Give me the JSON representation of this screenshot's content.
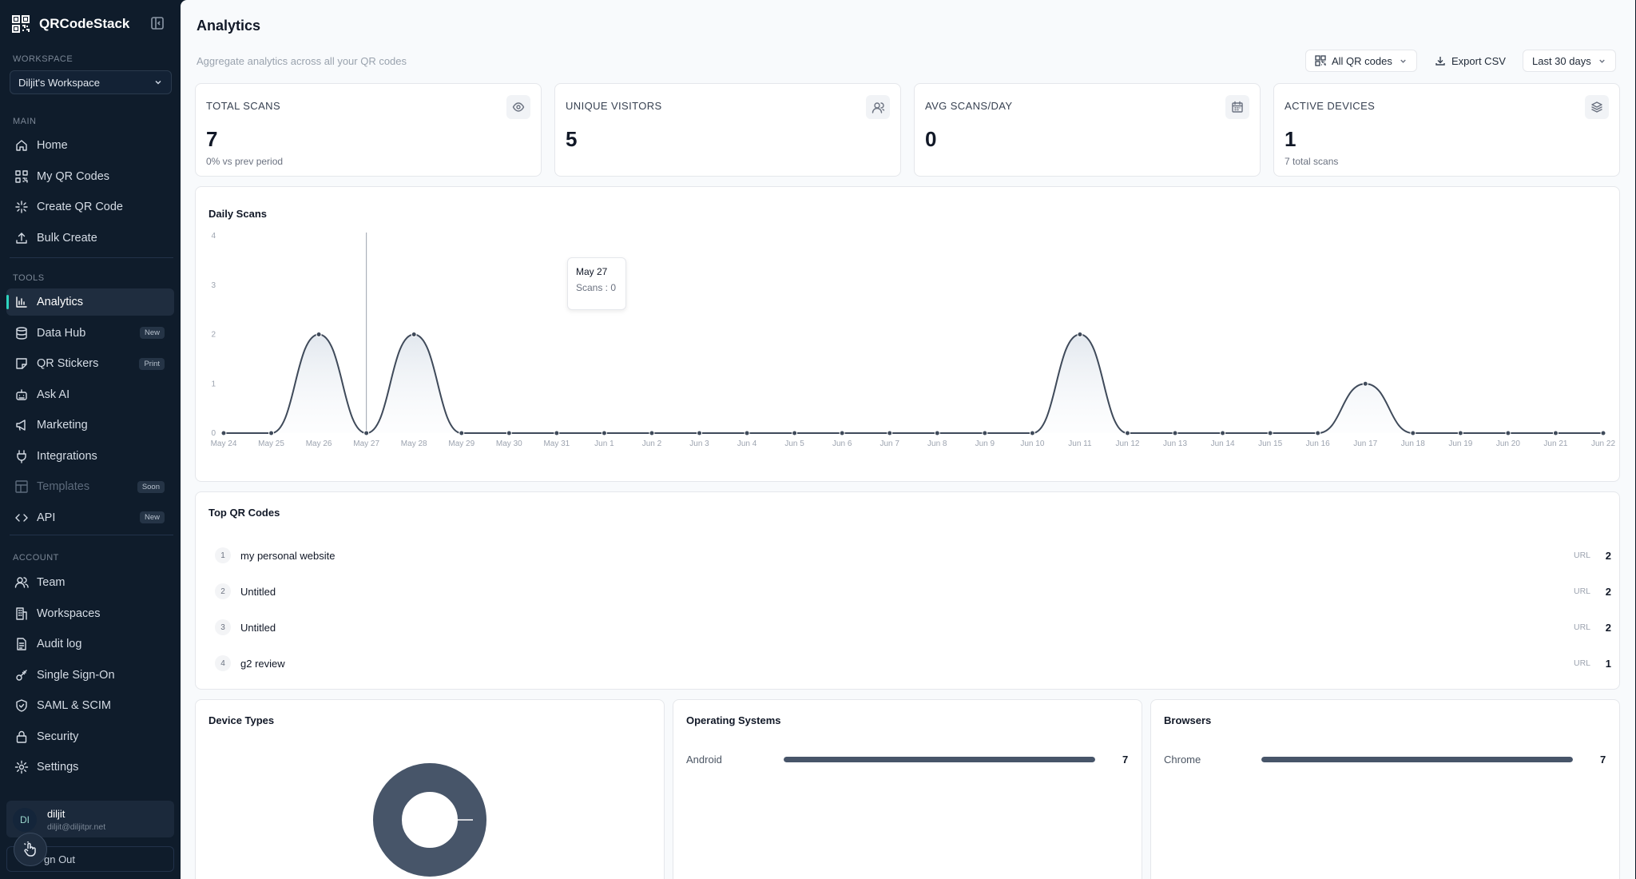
{
  "brand": {
    "name": "QRCodeStack"
  },
  "workspace": {
    "label": "WORKSPACE",
    "selected": "Diljit's Workspace"
  },
  "sections": {
    "main": "MAIN",
    "tools": "TOOLS",
    "account": "ACCOUNT"
  },
  "nav_main": [
    {
      "label": "Home",
      "icon": "home-icon"
    },
    {
      "label": "My QR Codes",
      "icon": "qr-icon"
    },
    {
      "label": "Create QR Code",
      "icon": "sparkle-icon"
    },
    {
      "label": "Bulk Create",
      "icon": "upload-icon"
    }
  ],
  "nav_tools": [
    {
      "label": "Analytics",
      "icon": "bar-chart-icon",
      "active": true
    },
    {
      "label": "Data Hub",
      "icon": "database-icon",
      "badge": "New"
    },
    {
      "label": "QR Stickers",
      "icon": "sticker-icon",
      "badge": "Print"
    },
    {
      "label": "Ask AI",
      "icon": "bot-icon"
    },
    {
      "label": "Marketing",
      "icon": "megaphone-icon"
    },
    {
      "label": "Integrations",
      "icon": "plug-icon"
    },
    {
      "label": "Templates",
      "icon": "template-icon",
      "badge": "Soon",
      "disabled": true
    },
    {
      "label": "API",
      "icon": "code-icon",
      "badge": "New"
    }
  ],
  "nav_account": [
    {
      "label": "Team",
      "icon": "users-icon"
    },
    {
      "label": "Workspaces",
      "icon": "building-icon"
    },
    {
      "label": "Audit log",
      "icon": "file-icon"
    },
    {
      "label": "Single Sign-On",
      "icon": "key-icon"
    },
    {
      "label": "SAML & SCIM",
      "icon": "shield-check-icon"
    },
    {
      "label": "Security",
      "icon": "lock-icon"
    },
    {
      "label": "Settings",
      "icon": "gear-icon"
    }
  ],
  "user": {
    "initials": "DI",
    "name": "diljit",
    "email": "diljit@diljitpr.net",
    "signout_label": "gn Out"
  },
  "page": {
    "title": "Analytics",
    "subtitle": "Aggregate analytics across all your QR codes"
  },
  "controls": {
    "filter": "All QR codes",
    "export": "Export CSV",
    "range": "Last 30 days"
  },
  "stats": [
    {
      "label": "TOTAL SCANS",
      "value": "7",
      "sub": "0% vs prev period",
      "icon": "eye-icon"
    },
    {
      "label": "UNIQUE VISITORS",
      "value": "5",
      "sub": "",
      "icon": "users-icon"
    },
    {
      "label": "AVG SCANS/DAY",
      "value": "0",
      "sub": "",
      "icon": "calendar-icon"
    },
    {
      "label": "ACTIVE DEVICES",
      "value": "1",
      "sub": "7 total scans",
      "icon": "layers-icon"
    }
  ],
  "daily": {
    "title": "Daily Scans",
    "tooltip_date": "May 27",
    "tooltip_value": "Scans : 0"
  },
  "chart_data": {
    "type": "area",
    "title": "Daily Scans",
    "xlabel": "",
    "ylabel": "",
    "ylim": [
      0,
      4
    ],
    "yticks": [
      "0",
      "1",
      "2",
      "3",
      "4"
    ],
    "x": [
      "May 24",
      "May 25",
      "May 26",
      "May 27",
      "May 28",
      "May 29",
      "May 30",
      "May 31",
      "Jun 1",
      "Jun 2",
      "Jun 3",
      "Jun 4",
      "Jun 5",
      "Jun 6",
      "Jun 7",
      "Jun 8",
      "Jun 9",
      "Jun 10",
      "Jun 11",
      "Jun 12",
      "Jun 13",
      "Jun 14",
      "Jun 15",
      "Jun 16",
      "Jun 17",
      "Jun 18",
      "Jun 19",
      "Jun 20",
      "Jun 21",
      "Jun 22"
    ],
    "series": [
      {
        "values": [
          0,
          0,
          2,
          0,
          2,
          0,
          0,
          0,
          0,
          0,
          0,
          0,
          0,
          0,
          0,
          0,
          0,
          0,
          2,
          0,
          0,
          0,
          0,
          0,
          1,
          0,
          0,
          0,
          0,
          0
        ]
      }
    ],
    "grid": false
  },
  "top_codes": {
    "title": "Top QR Codes",
    "items": [
      {
        "rank": "1",
        "name": "my personal website",
        "type": "URL",
        "count": "2"
      },
      {
        "rank": "2",
        "name": "Untitled",
        "type": "URL",
        "count": "2"
      },
      {
        "rank": "3",
        "name": "Untitled",
        "type": "URL",
        "count": "2"
      },
      {
        "rank": "4",
        "name": "g2 review",
        "type": "URL",
        "count": "1"
      }
    ]
  },
  "device_types": {
    "title": "Device Types",
    "slices": [
      1.0
    ],
    "color": "#475569"
  },
  "os": {
    "title": "Operating Systems",
    "items": [
      {
        "label": "Android",
        "count": "7",
        "fraction": 1.0
      }
    ]
  },
  "browsers": {
    "title": "Browsers",
    "items": [
      {
        "label": "Chrome",
        "count": "7",
        "fraction": 1.0
      }
    ]
  }
}
